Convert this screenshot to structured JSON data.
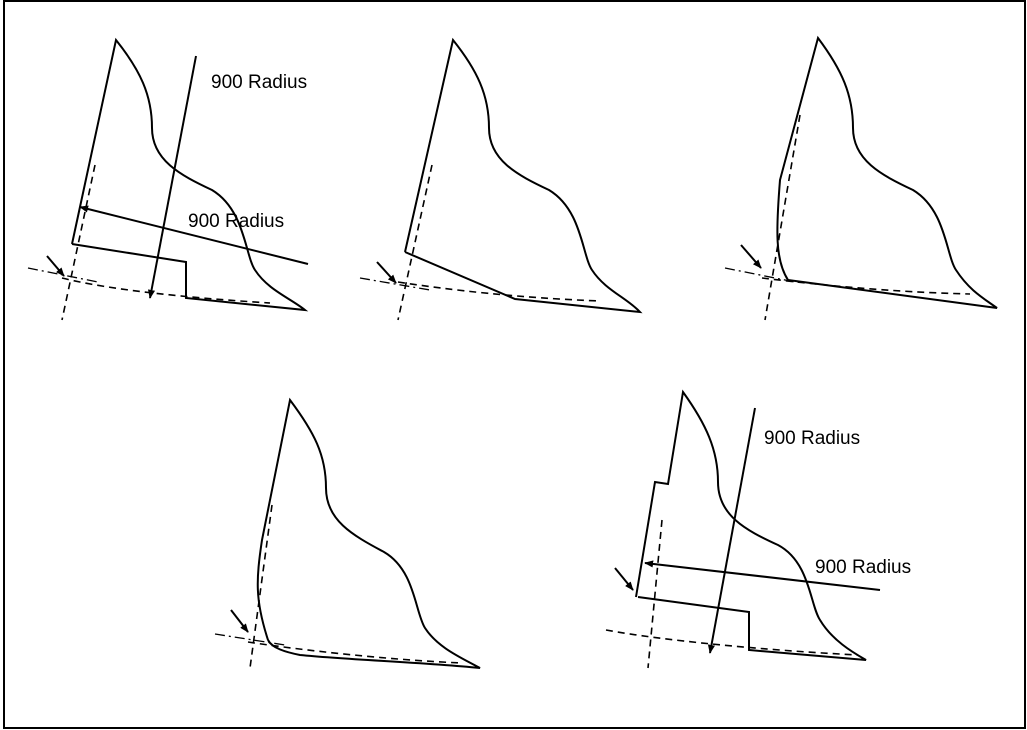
{
  "labels": {
    "fig1_top": "900 Radius",
    "fig1_mid": "900 Radius",
    "fig5_top": "900 Radius",
    "fig5_mid": "900 Radius"
  }
}
